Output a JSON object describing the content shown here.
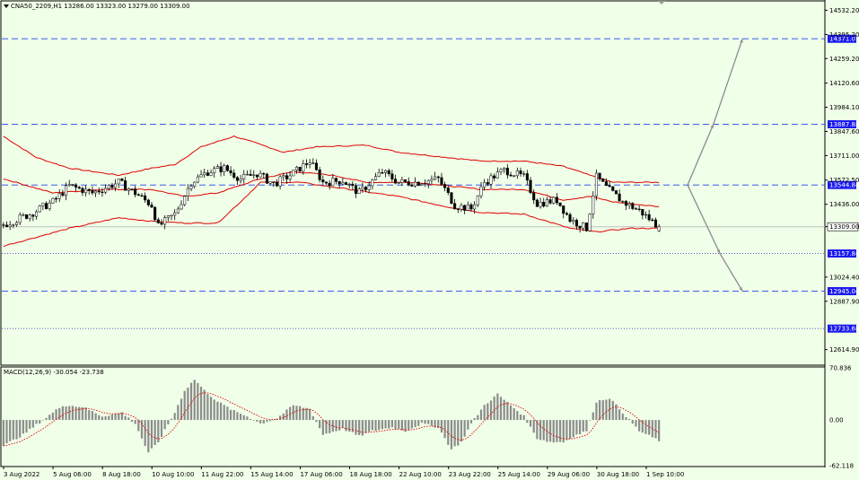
{
  "header": {
    "instrument_line": "CNA50_2209,H1  13286.00 13323.00 13279.00 13309.00",
    "macd_line": "MACD(12,26,9) -30.054 -23.738"
  },
  "colors": {
    "background": "#f0ffe8",
    "candle": "#000000",
    "bollinger": "#e00000",
    "level_dashed": "#2244ee",
    "level_dotted": "#4444cc",
    "arrow": "#8c8c8c",
    "macd_hist": "#8c8c8c",
    "macd_signal": "#e00000",
    "label_bg": "#1a1aee",
    "current_price_line": "#c0c0c0"
  },
  "chart_data": [
    {
      "type": "candlestick",
      "title": "CNA50_2209,H1",
      "ohlc": {
        "open": 13286.0,
        "high": 13323.0,
        "low": 13279.0,
        "close": 13309.0
      },
      "y_ticks": [
        "14532.20",
        "14395.20",
        "14259.20",
        "14120.60",
        "13984.10",
        "13847.60",
        "13711.00",
        "13572.50",
        "13436.00",
        "13309.00",
        "13024.40",
        "12887.90",
        "12614.90"
      ],
      "ylim": [
        12532.0,
        14580.0
      ],
      "current_price": {
        "value": 13309.0,
        "label": "13309.00"
      },
      "levels": [
        {
          "value": 14371.01,
          "label": "14371.01",
          "style": "dashed"
        },
        {
          "value": 13887.88,
          "label": "13887.88",
          "style": "dashed"
        },
        {
          "value": 13544.84,
          "label": "13544.84",
          "style": "dashed"
        },
        {
          "value": 13157.84,
          "label": "13157.84",
          "style": "dotted"
        },
        {
          "value": 12945.04,
          "label": "12945.04",
          "style": "dashed"
        },
        {
          "value": 12733.68,
          "label": "12733.68",
          "style": "dotted"
        }
      ],
      "x_labels": [
        "3 Aug 2022",
        "5 Aug 06:00",
        "8 Aug 18:00",
        "10 Aug 10:00",
        "11 Aug 22:00",
        "15 Aug 14:00",
        "17 Aug 06:00",
        "18 Aug 18:00",
        "22 Aug 10:00",
        "23 Aug 22:00",
        "25 Aug 14:00",
        "29 Aug 06:00",
        "30 Aug 18:00",
        "1 Sep 10:00"
      ],
      "bars_count": 200,
      "price_keypoints": [
        [
          0,
          13320
        ],
        [
          8,
          13380
        ],
        [
          15,
          13450
        ],
        [
          20,
          13540
        ],
        [
          27,
          13500
        ],
        [
          35,
          13560
        ],
        [
          40,
          13500
        ],
        [
          45,
          13430
        ],
        [
          47,
          13310
        ],
        [
          52,
          13380
        ],
        [
          57,
          13560
        ],
        [
          62,
          13620
        ],
        [
          67,
          13640
        ],
        [
          72,
          13580
        ],
        [
          77,
          13610
        ],
        [
          82,
          13550
        ],
        [
          87,
          13600
        ],
        [
          93,
          13680
        ],
        [
          97,
          13560
        ],
        [
          103,
          13570
        ],
        [
          108,
          13500
        ],
        [
          115,
          13620
        ],
        [
          120,
          13560
        ],
        [
          126,
          13560
        ],
        [
          132,
          13580
        ],
        [
          137,
          13430
        ],
        [
          142,
          13410
        ],
        [
          146,
          13560
        ],
        [
          152,
          13630
        ],
        [
          158,
          13590
        ],
        [
          162,
          13440
        ],
        [
          168,
          13460
        ],
        [
          172,
          13350
        ],
        [
          177,
          13300
        ],
        [
          180,
          13590
        ],
        [
          183,
          13530
        ],
        [
          188,
          13450
        ],
        [
          193,
          13400
        ],
        [
          199,
          13309
        ]
      ],
      "bollinger_keypoints": {
        "upper": [
          [
            0,
            13820
          ],
          [
            10,
            13700
          ],
          [
            20,
            13640
          ],
          [
            35,
            13600
          ],
          [
            45,
            13640
          ],
          [
            52,
            13660
          ],
          [
            60,
            13760
          ],
          [
            70,
            13820
          ],
          [
            77,
            13780
          ],
          [
            85,
            13730
          ],
          [
            95,
            13760
          ],
          [
            110,
            13770
          ],
          [
            120,
            13730
          ],
          [
            135,
            13700
          ],
          [
            145,
            13680
          ],
          [
            158,
            13680
          ],
          [
            170,
            13650
          ],
          [
            178,
            13600
          ],
          [
            185,
            13560
          ],
          [
            200,
            13560
          ]
        ],
        "middle": [
          [
            0,
            13580
          ],
          [
            15,
            13500
          ],
          [
            30,
            13520
          ],
          [
            45,
            13520
          ],
          [
            55,
            13480
          ],
          [
            65,
            13500
          ],
          [
            78,
            13580
          ],
          [
            88,
            13620
          ],
          [
            100,
            13600
          ],
          [
            110,
            13560
          ],
          [
            125,
            13560
          ],
          [
            135,
            13540
          ],
          [
            145,
            13520
          ],
          [
            158,
            13520
          ],
          [
            170,
            13460
          ],
          [
            178,
            13480
          ],
          [
            185,
            13450
          ],
          [
            200,
            13420
          ]
        ],
        "lower": [
          [
            0,
            13200
          ],
          [
            10,
            13250
          ],
          [
            20,
            13300
          ],
          [
            35,
            13360
          ],
          [
            45,
            13340
          ],
          [
            55,
            13330
          ],
          [
            65,
            13330
          ],
          [
            72,
            13450
          ],
          [
            78,
            13560
          ],
          [
            90,
            13560
          ],
          [
            105,
            13520
          ],
          [
            120,
            13480
          ],
          [
            135,
            13420
          ],
          [
            145,
            13390
          ],
          [
            158,
            13380
          ],
          [
            172,
            13300
          ],
          [
            180,
            13280
          ],
          [
            190,
            13300
          ],
          [
            200,
            13300
          ]
        ]
      },
      "forecast_arrows": [
        {
          "points": [
            [
              13544.84,
              0
            ],
            [
              13887.88,
              8
            ],
            [
              14371.01,
              17
            ]
          ]
        },
        {
          "points": [
            [
              13544.84,
              0
            ],
            [
              13157.84,
              10
            ],
            [
              12945.04,
              17
            ]
          ]
        }
      ]
    },
    {
      "type": "bar",
      "title": "MACD(12,26,9)",
      "main": -30.054,
      "signal": -23.738,
      "y_ticks": [
        "70.836",
        "0.00",
        "-62.118"
      ],
      "ylim": [
        -62.118,
        70.836
      ],
      "hist_keypoints": [
        [
          0,
          -35
        ],
        [
          6,
          -20
        ],
        [
          12,
          0
        ],
        [
          18,
          20
        ],
        [
          24,
          18
        ],
        [
          30,
          5
        ],
        [
          36,
          10
        ],
        [
          40,
          -5
        ],
        [
          44,
          -45
        ],
        [
          47,
          -30
        ],
        [
          52,
          10
        ],
        [
          55,
          40
        ],
        [
          58,
          55
        ],
        [
          61,
          40
        ],
        [
          65,
          25
        ],
        [
          70,
          12
        ],
        [
          74,
          5
        ],
        [
          78,
          -5
        ],
        [
          83,
          2
        ],
        [
          88,
          20
        ],
        [
          93,
          15
        ],
        [
          97,
          -20
        ],
        [
          103,
          -12
        ],
        [
          108,
          -22
        ],
        [
          112,
          -15
        ],
        [
          118,
          -10
        ],
        [
          122,
          -15
        ],
        [
          127,
          -5
        ],
        [
          132,
          -10
        ],
        [
          136,
          -40
        ],
        [
          139,
          -30
        ],
        [
          142,
          -5
        ],
        [
          146,
          20
        ],
        [
          150,
          35
        ],
        [
          154,
          20
        ],
        [
          158,
          5
        ],
        [
          162,
          -25
        ],
        [
          166,
          -30
        ],
        [
          170,
          -30
        ],
        [
          173,
          -22
        ],
        [
          177,
          -15
        ],
        [
          180,
          25
        ],
        [
          184,
          30
        ],
        [
          188,
          10
        ],
        [
          193,
          -15
        ],
        [
          199,
          -28
        ]
      ]
    }
  ]
}
